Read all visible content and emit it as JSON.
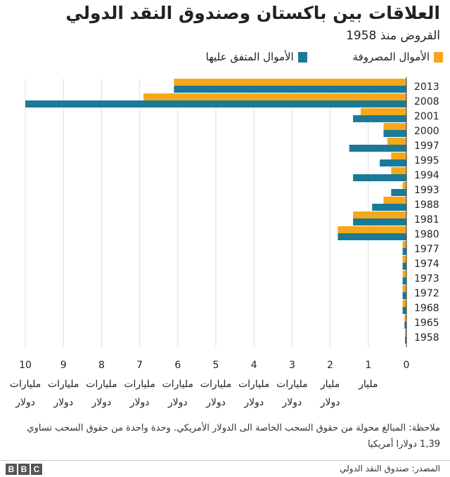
{
  "header": {
    "title": "العلاقات بين باكستان وصندوق النقد الدولي",
    "subtitle": "القروض منذ 1958"
  },
  "colors": {
    "disbursed": "#f5a81a",
    "agreed": "#1c7a99",
    "grid": "#dddddd",
    "axis": "#333333"
  },
  "chart_data": {
    "type": "bar",
    "orientation": "horizontal",
    "title": "العلاقات بين باكستان وصندوق النقد الدولي",
    "subtitle": "القروض منذ 1958",
    "categories": [
      "2013",
      "2008",
      "2001",
      "2000",
      "1997",
      "1995",
      "1994",
      "1993",
      "1988",
      "1981",
      "1980",
      "1977",
      "1974",
      "1973",
      "1972",
      "1968",
      "1965",
      "1958"
    ],
    "series": [
      {
        "name": "الأموال المصروفة",
        "key": "disbursed",
        "values": [
          6.1,
          6.9,
          1.2,
          0.6,
          0.5,
          0.4,
          0.4,
          0.1,
          0.6,
          1.4,
          1.8,
          0.1,
          0.1,
          0.1,
          0.1,
          0.1,
          0.05,
          0.03
        ]
      },
      {
        "name": "الأموال المتفق عليها",
        "key": "agreed",
        "values": [
          6.1,
          10.0,
          1.4,
          0.6,
          1.5,
          0.7,
          1.4,
          0.4,
          0.9,
          1.4,
          1.8,
          0.1,
          0.1,
          0.1,
          0.1,
          0.1,
          0.05,
          0.03
        ]
      }
    ],
    "xlim": [
      0,
      10
    ],
    "xaxis_direction": "right-to-left",
    "ticks": [
      {
        "value": 0,
        "num": "0",
        "line1": "",
        "line2": ""
      },
      {
        "value": 1,
        "num": "1",
        "line1": "مليار",
        "line2": ""
      },
      {
        "value": 2,
        "num": "2",
        "line1": "مليار",
        "line2": "دولار"
      },
      {
        "value": 3,
        "num": "3",
        "line1": "مليارات",
        "line2": "دولار"
      },
      {
        "value": 4,
        "num": "4",
        "line1": "مليارات",
        "line2": "دولار"
      },
      {
        "value": 5,
        "num": "5",
        "line1": "مليارات",
        "line2": "دولار"
      },
      {
        "value": 6,
        "num": "6",
        "line1": "مليارات",
        "line2": "دولار"
      },
      {
        "value": 7,
        "num": "7",
        "line1": "مليارات",
        "line2": "دولار"
      },
      {
        "value": 8,
        "num": "8",
        "line1": "مليارات",
        "line2": "دولار"
      },
      {
        "value": 9,
        "num": "9",
        "line1": "مليارات",
        "line2": "دولار"
      },
      {
        "value": 10,
        "num": "10",
        "line1": "مليارات",
        "line2": "دولار"
      }
    ],
    "legend_position": "top-right"
  },
  "note": "ملاحظة: المبالغ محولة من حقوق السحب الخاصة الى الدولار الأمريكي. وحدة واحدة من حقوق السحب تساوي 1,39 دولارا أمريكيا",
  "footer": {
    "source": "المصدر: صندوق النقد الدولي",
    "logo": [
      "B",
      "B",
      "C"
    ]
  }
}
